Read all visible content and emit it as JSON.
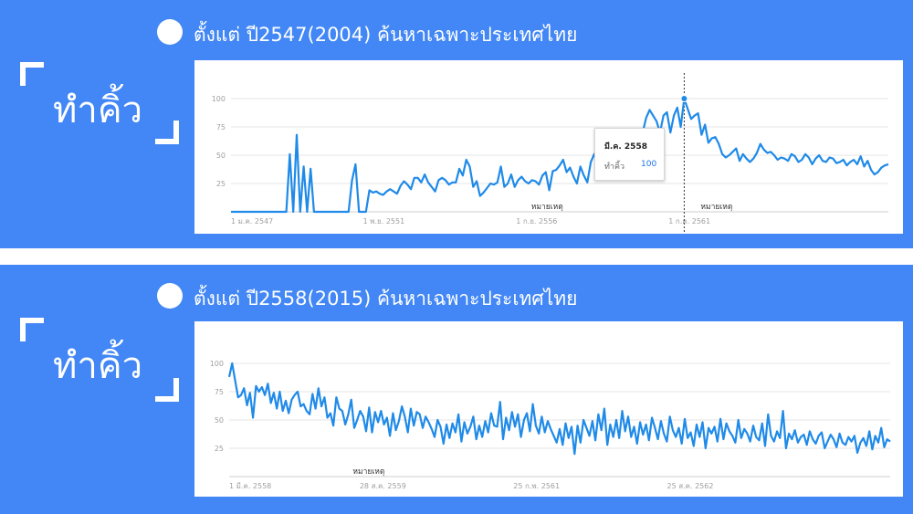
{
  "panels": [
    {
      "heading": "ตั้งแต่ ปี2547(2004) ค้นหาเฉพาะประเทศไทย",
      "search_term": "ทำคิ้ว",
      "colors": {
        "background": "#4287f5",
        "line": "#1f8ae8",
        "grid": "#e6e6e6"
      },
      "tooltip": {
        "title": "มี.ค. 2558",
        "series": "ทำคิ้ว",
        "value": "100"
      }
    },
    {
      "heading": "ตั้งแต่ ปี2558(2015) ค้นหาเฉพาะประเทศไทย",
      "search_term": "ทำคิ้ว",
      "colors": {
        "background": "#4287f5",
        "line": "#1f8ae8",
        "grid": "#e6e6e6"
      }
    }
  ],
  "chart_data": [
    {
      "type": "line",
      "x_tick_labels": [
        "1 ม.ค. 2547",
        "1 พ.ย. 2551",
        "1 ก.ย. 2556",
        "1 ก.ค. 2561"
      ],
      "y_ticks": [
        25,
        50,
        75,
        100
      ],
      "ylim": [
        0,
        100
      ],
      "grid": true,
      "annotations": [
        {
          "label": "หมายเหตุ",
          "x_index": 82
        },
        {
          "label": "หมายเหตุ",
          "x_index": 131
        }
      ],
      "highlight_index": 131,
      "series": [
        {
          "name": "ทำคิ้ว",
          "values": [
            0,
            0,
            0,
            0,
            0,
            0,
            0,
            0,
            0,
            0,
            0,
            0,
            0,
            0,
            0,
            0,
            0,
            51,
            0,
            68,
            0,
            40,
            0,
            38,
            0,
            0,
            0,
            0,
            0,
            0,
            0,
            0,
            0,
            0,
            0,
            28,
            42,
            0,
            0,
            0,
            19,
            17,
            18,
            16,
            15,
            18,
            20,
            18,
            16,
            23,
            27,
            24,
            20,
            30,
            30,
            26,
            33,
            26,
            22,
            18,
            28,
            30,
            28,
            24,
            26,
            26,
            38,
            32,
            46,
            40,
            22,
            27,
            14,
            17,
            21,
            25,
            24,
            26,
            40,
            22,
            25,
            33,
            22,
            28,
            31,
            27,
            25,
            28,
            27,
            24,
            32,
            35,
            19,
            36,
            37,
            41,
            46,
            35,
            39,
            31,
            25,
            40,
            32,
            26,
            44,
            51,
            43,
            48,
            38,
            40,
            52,
            51,
            46,
            58,
            54,
            48,
            60,
            66,
            55,
            70,
            83,
            90,
            85,
            80,
            70,
            85,
            88,
            70,
            85,
            92,
            75,
            100,
            91,
            82,
            85,
            87,
            68,
            77,
            61,
            65,
            66,
            60,
            51,
            48,
            50,
            53,
            56,
            45,
            51,
            47,
            44,
            47,
            52,
            60,
            55,
            52,
            53,
            50,
            46,
            48,
            47,
            45,
            51,
            49,
            44,
            46,
            51,
            48,
            42,
            47,
            50,
            45,
            44,
            48,
            47,
            43,
            44,
            46,
            41,
            44,
            46,
            42,
            49,
            40,
            45,
            37,
            33,
            35,
            39,
            41,
            42
          ]
        }
      ]
    },
    {
      "type": "line",
      "x_tick_labels": [
        "1 มี.ค. 2558",
        "28 ส.ค. 2559",
        "25 ก.พ. 2561",
        "25 ส.ค. 2562"
      ],
      "y_ticks": [
        25,
        50,
        75,
        100
      ],
      "ylim": [
        0,
        100
      ],
      "grid": true,
      "annotations": [
        {
          "label": "หมายเหตุ",
          "x_index": 36
        }
      ],
      "series": [
        {
          "name": "ทำคิ้ว",
          "values": [
            88,
            100,
            85,
            70,
            72,
            78,
            63,
            74,
            52,
            80,
            75,
            79,
            72,
            82,
            65,
            74,
            60,
            75,
            58,
            67,
            56,
            68,
            72,
            75,
            62,
            64,
            58,
            55,
            73,
            60,
            78,
            62,
            70,
            52,
            56,
            45,
            70,
            60,
            58,
            46,
            55,
            68,
            43,
            50,
            58,
            53,
            40,
            61,
            39,
            57,
            48,
            58,
            46,
            52,
            36,
            56,
            41,
            49,
            62,
            53,
            39,
            60,
            45,
            57,
            55,
            43,
            53,
            48,
            42,
            35,
            50,
            44,
            29,
            46,
            34,
            47,
            39,
            55,
            31,
            48,
            38,
            44,
            53,
            33,
            45,
            35,
            49,
            39,
            56,
            45,
            44,
            66,
            33,
            52,
            41,
            57,
            44,
            55,
            35,
            50,
            56,
            40,
            64,
            45,
            38,
            53,
            39,
            49,
            42,
            36,
            30,
            42,
            28,
            47,
            34,
            44,
            20,
            45,
            30,
            50,
            43,
            36,
            49,
            32,
            55,
            41,
            60,
            28,
            46,
            35,
            50,
            34,
            58,
            40,
            53,
            35,
            44,
            29,
            48,
            37,
            46,
            32,
            52,
            43,
            33,
            49,
            38,
            31,
            53,
            41,
            35,
            43,
            29,
            51,
            34,
            39,
            27,
            46,
            35,
            48,
            25,
            43,
            38,
            44,
            31,
            51,
            33,
            47,
            40,
            36,
            30,
            50,
            34,
            42,
            38,
            31,
            45,
            35,
            32,
            47,
            27,
            55,
            36,
            31,
            40,
            34,
            58,
            25,
            38,
            33,
            41,
            30,
            35,
            37,
            28,
            40,
            33,
            29,
            36,
            39,
            25,
            31,
            37,
            33,
            26,
            38,
            30,
            28,
            35,
            31,
            36,
            21,
            30,
            34,
            27,
            40,
            24,
            36,
            30,
            43,
            26,
            33,
            31
          ]
        }
      ]
    }
  ]
}
